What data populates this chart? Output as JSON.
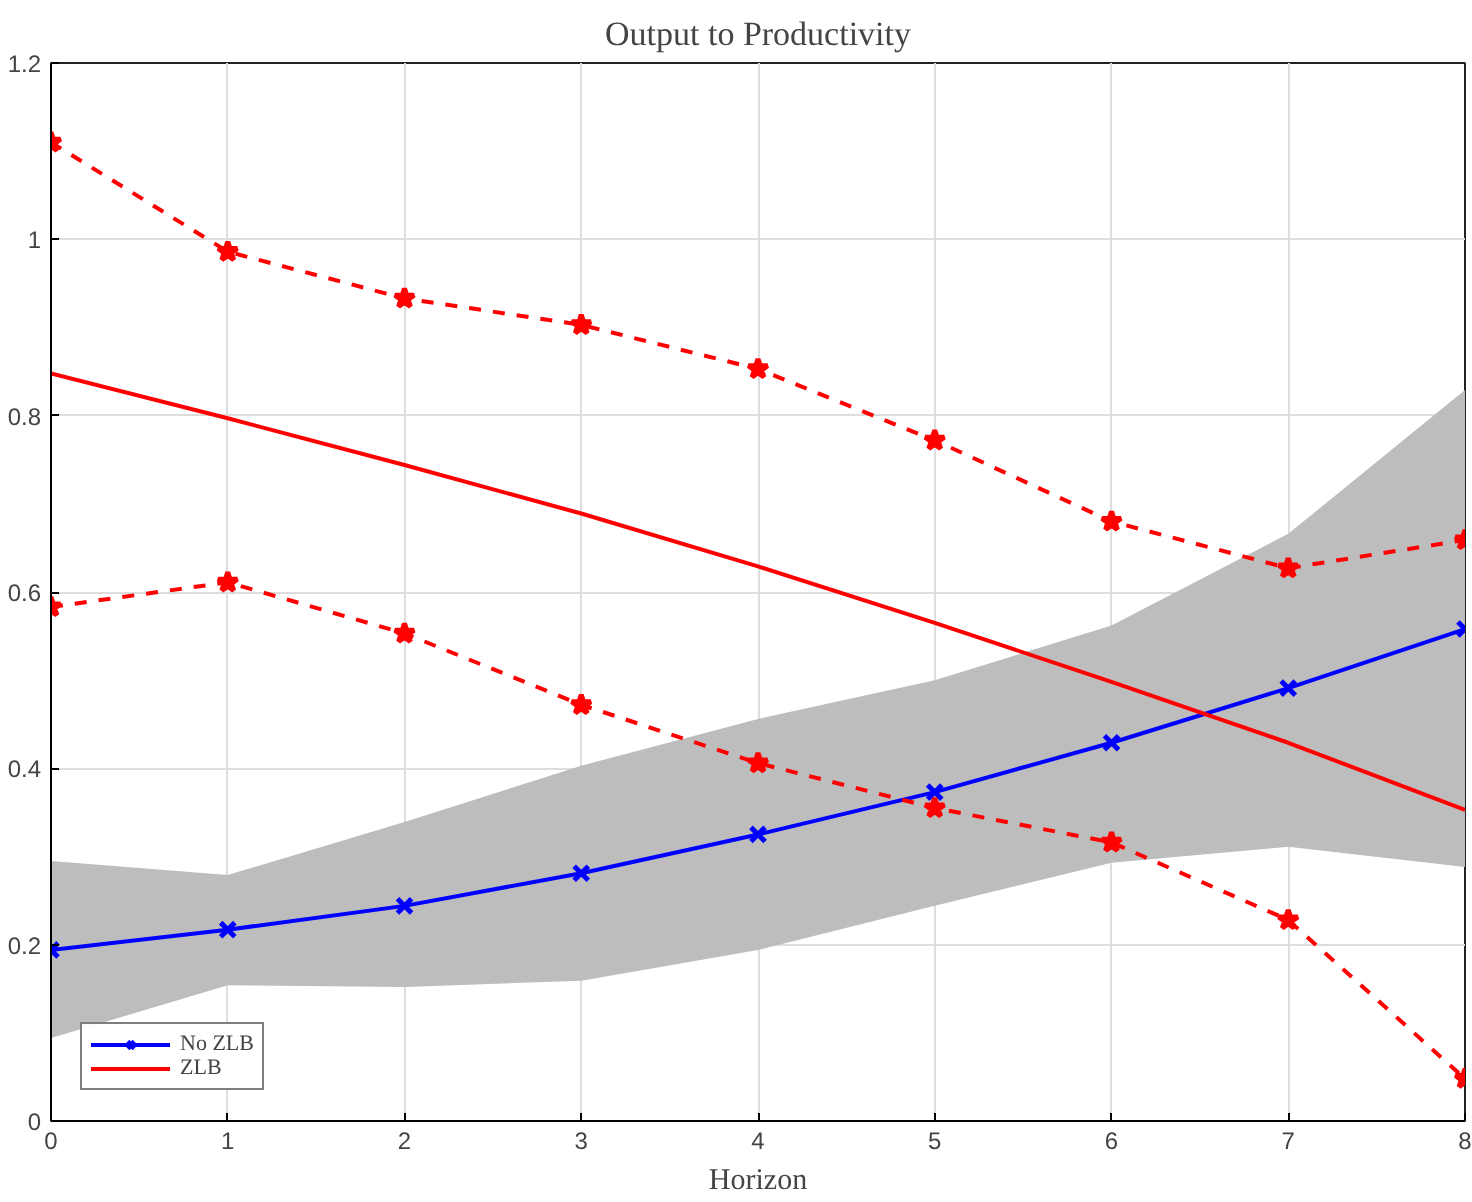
{
  "chart_data": {
    "type": "line",
    "title": "Output to Productivity",
    "xlabel": "Horizon",
    "x": [
      0,
      1,
      2,
      3,
      4,
      5,
      6,
      7,
      8
    ],
    "series": [
      {
        "name": "No ZLB",
        "color": "#0000ff",
        "marker": "cross",
        "line_style": "solid",
        "values": [
          0.194,
          0.217,
          0.244,
          0.281,
          0.325,
          0.373,
          0.429,
          0.491,
          0.558
        ],
        "lower": [
          0.094,
          0.154,
          0.152,
          0.159,
          0.194,
          0.244,
          0.293,
          0.311,
          0.288
        ],
        "upper": [
          0.295,
          0.279,
          0.339,
          0.403,
          0.456,
          0.5,
          0.562,
          0.666,
          0.829
        ]
      },
      {
        "name": "ZLB",
        "color": "#ff0000",
        "marker": "none",
        "line_style": "solid",
        "values": [
          0.848,
          0.797,
          0.744,
          0.689,
          0.629,
          0.565,
          0.498,
          0.429,
          0.353
        ]
      },
      {
        "color": "#ff0000",
        "marker": "star",
        "line_style": "dashed",
        "values": [
          1.11,
          0.986,
          0.933,
          0.903,
          0.853,
          0.772,
          0.68,
          0.627,
          0.659
        ]
      },
      {
        "color": "#ff0000",
        "marker": "star",
        "line_style": "dashed",
        "values": [
          0.583,
          0.611,
          0.553,
          0.472,
          0.406,
          0.355,
          0.316,
          0.228,
          0.048
        ]
      }
    ],
    "xlim": [
      0,
      8
    ],
    "ylim": [
      0,
      1.2
    ],
    "xticks": [
      0,
      1,
      2,
      3,
      4,
      5,
      6,
      7,
      8
    ],
    "yticks": [
      0,
      {
        "value": 0.2,
        "label": "0.2"
      },
      {
        "value": 0.4,
        "label": "0.4"
      },
      {
        "value": 0.6,
        "label": "0.6"
      },
      {
        "value": 0.8,
        "label": "0.8"
      },
      1,
      {
        "value": 1.2,
        "label": "1.2"
      }
    ],
    "grid": true,
    "legend": "bottom left"
  }
}
